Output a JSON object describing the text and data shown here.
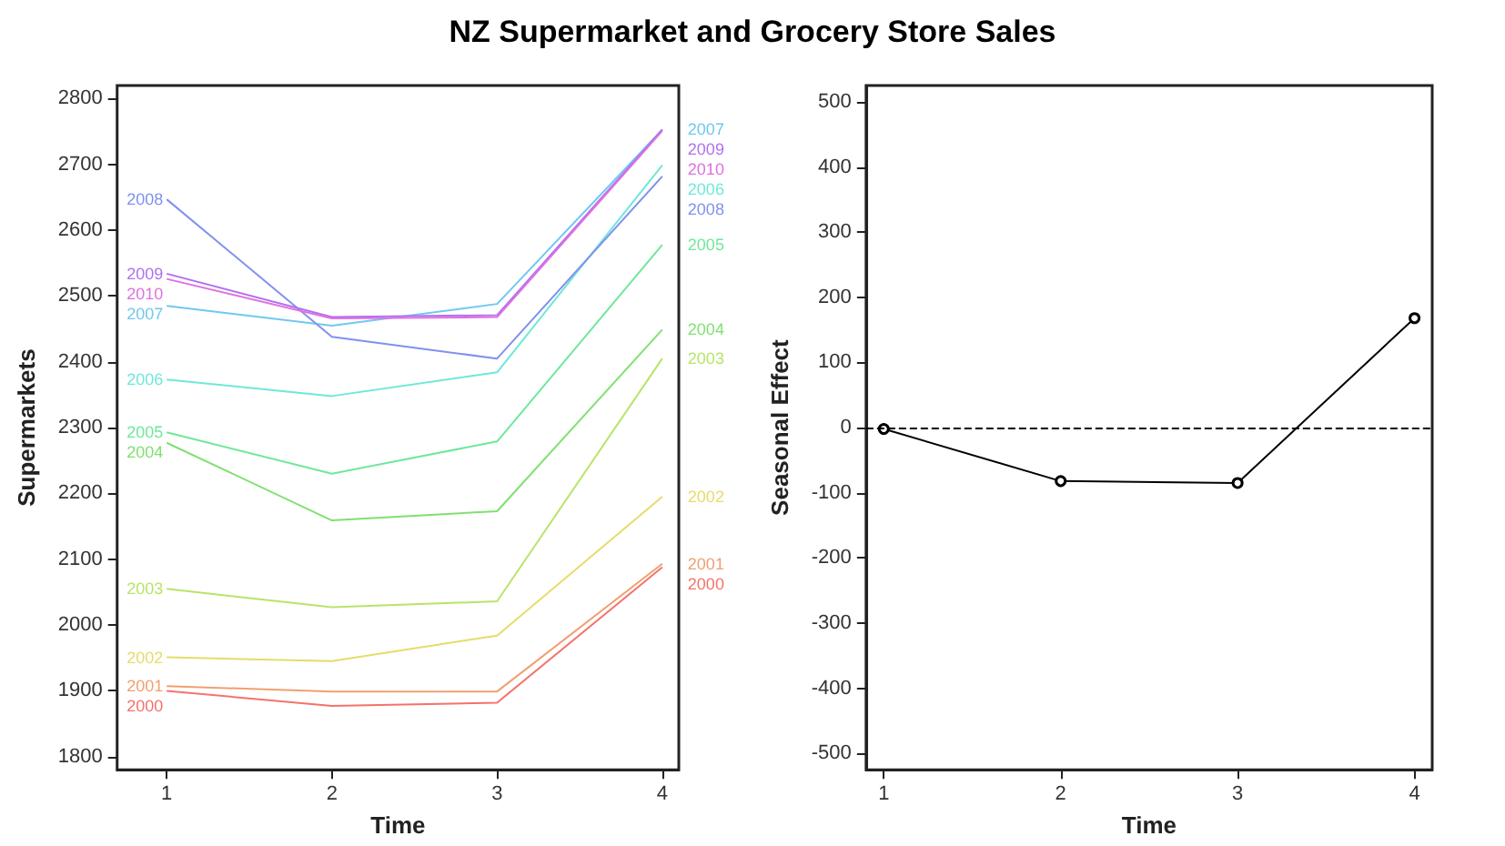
{
  "chart_data": [
    {
      "type": "line",
      "title": "NZ Supermarket and Grocery Store Sales",
      "xlabel": "Time",
      "ylabel": "Supermarkets",
      "x": [
        1,
        2,
        3,
        4
      ],
      "xlim": [
        0.7,
        4.1
      ],
      "xticks": [
        1,
        2,
        3,
        4
      ],
      "ylim": [
        1780,
        2820
      ],
      "yticks": [
        1800,
        1900,
        2000,
        2100,
        2200,
        2300,
        2400,
        2500,
        2600,
        2700,
        2800
      ],
      "grid": false,
      "legend": false,
      "marker": "none",
      "line_style": "solid",
      "series": [
        {
          "name": "2000",
          "color": "#f4726b",
          "values": [
            1900,
            1877,
            1882,
            2088
          ]
        },
        {
          "name": "2001",
          "color": "#f0a070",
          "values": [
            1907,
            1899,
            1899,
            2093
          ]
        },
        {
          "name": "2002",
          "color": "#e6dc6a",
          "values": [
            1951,
            1945,
            1984,
            2195
          ]
        },
        {
          "name": "2003",
          "color": "#b8e46a",
          "values": [
            2055,
            2027,
            2036,
            2405
          ]
        },
        {
          "name": "2004",
          "color": "#80e070",
          "values": [
            2277,
            2159,
            2173,
            2449
          ]
        },
        {
          "name": "2005",
          "color": "#6ee89a",
          "values": [
            2293,
            2230,
            2279,
            2578
          ]
        },
        {
          "name": "2006",
          "color": "#6ee8d8",
          "values": [
            2373,
            2348,
            2384,
            2699
          ]
        },
        {
          "name": "2007",
          "color": "#70c8f0",
          "values": [
            2485,
            2455,
            2488,
            2753
          ]
        },
        {
          "name": "2008",
          "color": "#8090f0",
          "values": [
            2647,
            2438,
            2405,
            2682
          ]
        },
        {
          "name": "2009",
          "color": "#b070f0",
          "values": [
            2534,
            2468,
            2471,
            2753
          ]
        },
        {
          "name": "2010",
          "color": "#e070e0",
          "values": [
            2526,
            2466,
            2468,
            2751
          ]
        }
      ]
    },
    {
      "type": "line",
      "xlabel": "Time",
      "ylabel": "Seasonal Effect",
      "x": [
        1,
        2,
        3,
        4
      ],
      "xlim": [
        0.9,
        4.1
      ],
      "xticks": [
        1,
        2,
        3,
        4
      ],
      "ylim": [
        -525,
        525
      ],
      "yticks": [
        -500,
        -400,
        -300,
        -200,
        -100,
        0,
        100,
        200,
        300,
        400,
        500
      ],
      "grid": false,
      "legend": false,
      "marker": "circle",
      "line_style": "solid",
      "series": [
        {
          "color": "#000000",
          "values": [
            -2,
            -82,
            -85,
            168
          ]
        }
      ],
      "ref_lines": [
        {
          "axis": "y",
          "value": 0,
          "color": "#000000",
          "line_style": "dashed"
        }
      ]
    }
  ]
}
